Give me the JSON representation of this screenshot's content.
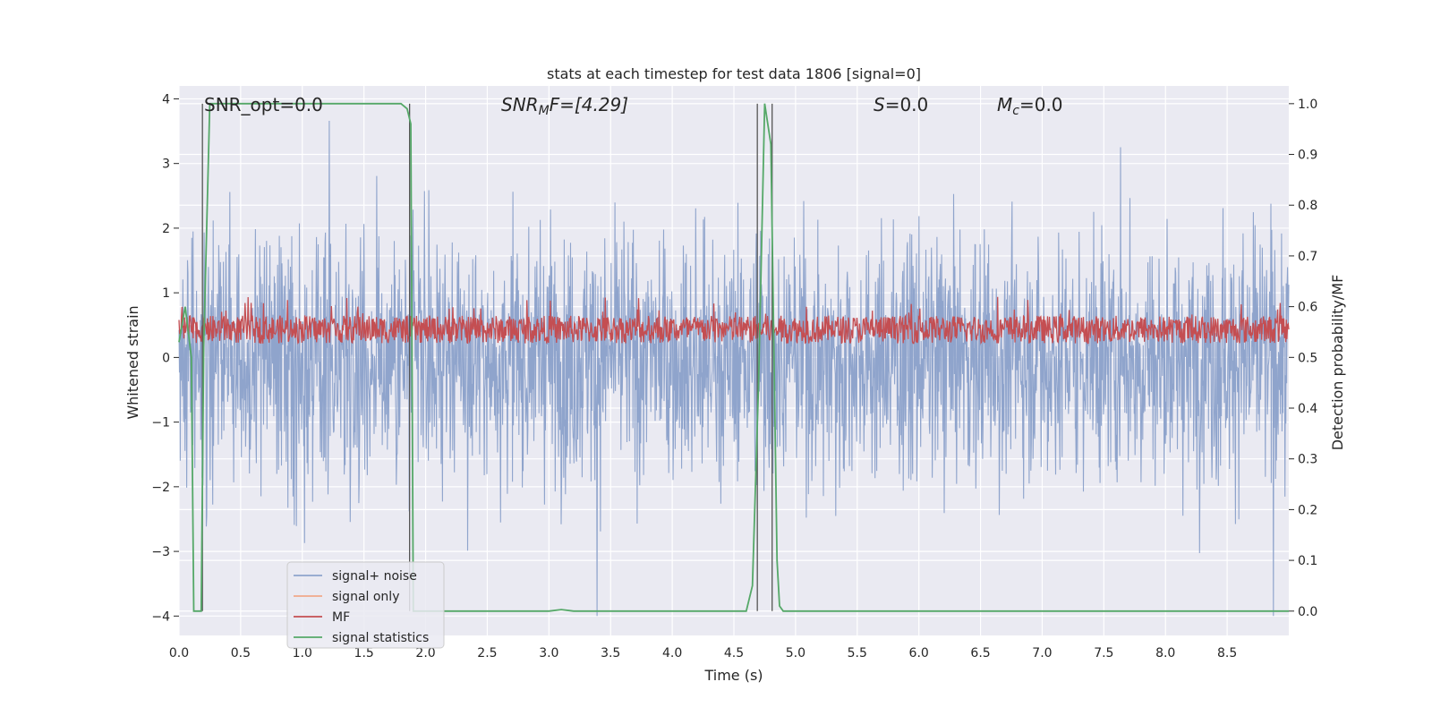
{
  "chart_data": {
    "type": "line",
    "title": "stats at each timestep for test data 1806 [signal=0]",
    "xlabel": "Time (s)",
    "ylabel_left": "Whitened strain",
    "ylabel_right": "Detection probability/MF",
    "xlim": [
      0.0,
      9.0
    ],
    "ylim_left": [
      -4.3,
      4.2
    ],
    "ylim_right": [
      -0.048,
      1.035
    ],
    "x_ticks": [
      0.0,
      0.5,
      1.0,
      1.5,
      2.0,
      2.5,
      3.0,
      3.5,
      4.0,
      4.5,
      5.0,
      5.5,
      6.0,
      6.5,
      7.0,
      7.5,
      8.0,
      8.5
    ],
    "x_tick_labels": [
      "0.0",
      "0.5",
      "1.0",
      "1.5",
      "2.0",
      "2.5",
      "3.0",
      "3.5",
      "4.0",
      "4.5",
      "5.0",
      "5.5",
      "6.0",
      "6.5",
      "7.0",
      "7.5",
      "8.0",
      "8.5"
    ],
    "y_left_ticks": [
      -4,
      -3,
      -2,
      -1,
      0,
      1,
      2,
      3,
      4
    ],
    "y_left_tick_labels": [
      "−4",
      "−3",
      "−2",
      "−1",
      "0",
      "1",
      "2",
      "3",
      "4"
    ],
    "y_right_ticks": [
      0.0,
      0.1,
      0.2,
      0.3,
      0.4,
      0.5,
      0.6,
      0.7,
      0.8,
      0.9,
      1.0
    ],
    "y_right_tick_labels": [
      "0.0",
      "0.1",
      "0.2",
      "0.3",
      "0.4",
      "0.5",
      "0.6",
      "0.7",
      "0.8",
      "0.9",
      "1.0"
    ],
    "grid": true,
    "legend_placement": "lower-left",
    "annotations": {
      "snr_opt": "SNR_opt=0.0",
      "snr_mf_main": "SNR",
      "snr_mf_sub": "M",
      "snr_mf_rest": "F=[4.29]",
      "s_main": "S",
      "s_rest": "=0.0",
      "mc_main": "M",
      "mc_sub": "c",
      "mc_rest": "=0.0"
    },
    "series": [
      {
        "name": "signal+ noise",
        "axis": "left",
        "color": "#8fa4cc",
        "description_values": "whitened noise envelope",
        "envelope_min": -4.0,
        "envelope_max": 3.8
      },
      {
        "name": "signal only",
        "axis": "left",
        "color": "#f0a98a",
        "values": []
      },
      {
        "name": "MF",
        "axis": "right",
        "color": "#c44e52",
        "range": [
          0.51,
          0.63
        ]
      },
      {
        "name": "signal statistics",
        "axis": "right",
        "color": "#55a868",
        "x": [
          0.0,
          0.05,
          0.1,
          0.12,
          0.18,
          0.2,
          0.25,
          0.3,
          0.5,
          1.0,
          1.5,
          1.8,
          1.85,
          1.88,
          1.9,
          1.95,
          2.0,
          2.5,
          3.0,
          3.1,
          3.2,
          3.5,
          4.0,
          4.5,
          4.6,
          4.65,
          4.7,
          4.75,
          4.8,
          4.85,
          4.87,
          4.9,
          5.0,
          6.0,
          7.0,
          8.0,
          9.0
        ],
        "values": [
          0.53,
          0.6,
          0.5,
          0.0,
          0.0,
          0.52,
          1.0,
          1.0,
          1.0,
          1.0,
          1.0,
          1.0,
          0.99,
          0.96,
          0.0,
          0.0,
          0.0,
          0.0,
          0.0,
          0.003,
          0.0,
          0.0,
          0.0,
          0.0,
          0.0,
          0.05,
          0.45,
          1.0,
          0.92,
          0.1,
          0.01,
          0.0,
          0.0,
          0.0,
          0.0,
          0.0,
          0.0
        ]
      }
    ],
    "vertical_markers": [
      0.19,
      1.87,
      4.69,
      4.81
    ],
    "legend": [
      {
        "label": "signal+ noise",
        "color": "#8fa4cc"
      },
      {
        "label": "signal only",
        "color": "#f0a98a"
      },
      {
        "label": "MF",
        "color": "#c44e52"
      },
      {
        "label": "signal statistics",
        "color": "#55a868"
      }
    ]
  }
}
